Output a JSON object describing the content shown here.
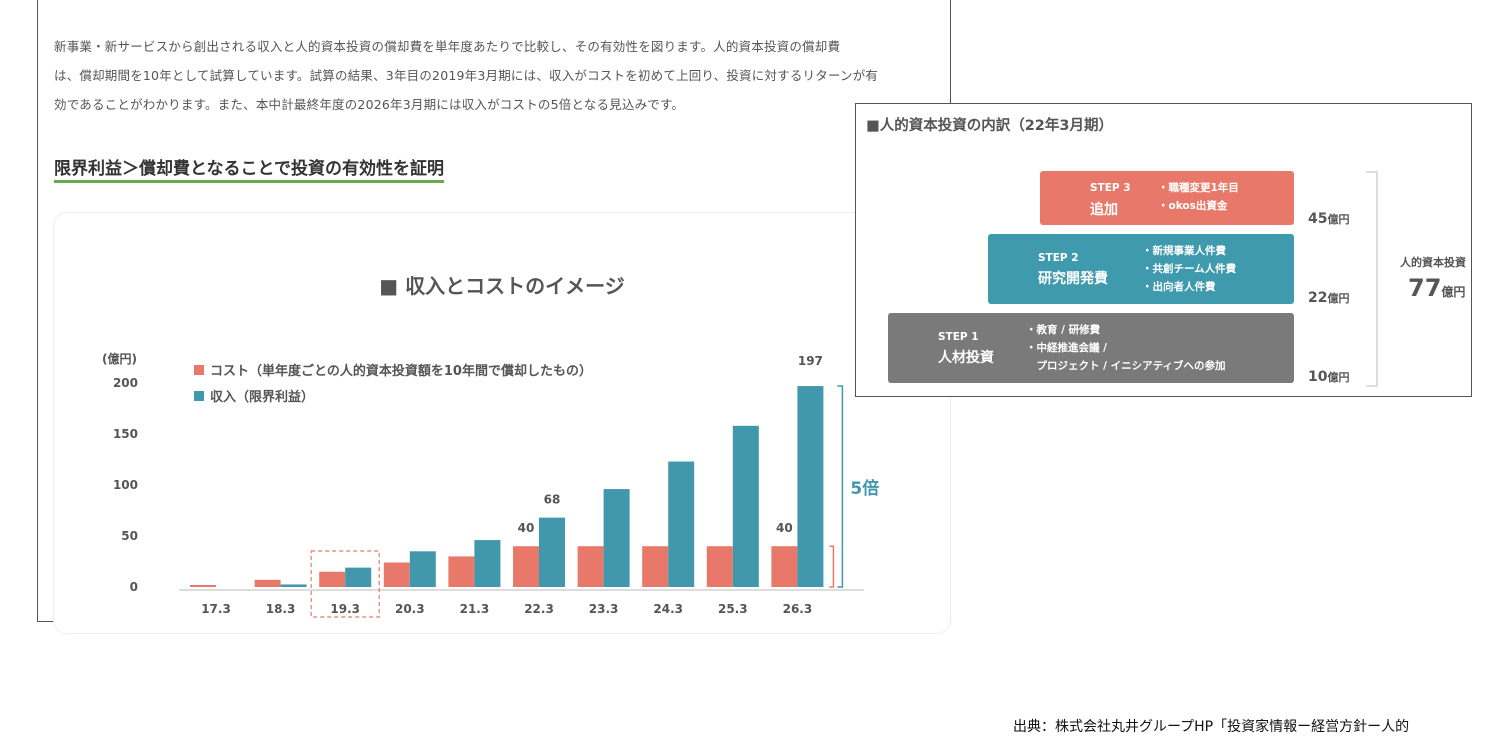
{
  "intro": {
    "line1": "新事業・新サービスから創出される収入と人的資本投資の償却費を単年度あたりで比較し、その有効性を図ります。人的資本投資の償却費",
    "line2": "は、償却期間を10年として試算しています。試算の結果、3年目の2019年3月期には、収入がコストを初めて上回り、投資に対するリターンが有",
    "line3": "効であることがわかります。また、本中計最終年度の2026年3月期には収入がコストの5倍となる見込みです。"
  },
  "subheading": "限界利益＞償却費となることで投資の有効性を証明",
  "chart_data": {
    "type": "bar",
    "title": "■ 収入とコストのイメージ",
    "ylabel": "(億円)",
    "ylim": [
      0,
      200
    ],
    "yticks": [
      0,
      50,
      100,
      150,
      200
    ],
    "categories": [
      "17.3",
      "18.3",
      "19.3",
      "20.3",
      "21.3",
      "22.3",
      "23.3",
      "24.3",
      "25.3",
      "26.3"
    ],
    "series": [
      {
        "name": "コスト（単年度ごとの人的資本投資額を10年間で償却したもの）",
        "color": "#e8796a",
        "values": [
          2,
          7,
          15,
          24,
          30,
          40,
          40,
          40,
          40,
          40
        ]
      },
      {
        "name": "収入（限界利益）",
        "color": "#4198ad",
        "values": [
          0,
          2.5,
          19,
          35,
          46,
          68,
          96,
          123,
          158,
          197
        ]
      }
    ],
    "data_labels": [
      {
        "category": "22.3",
        "series": 0,
        "text": "40"
      },
      {
        "category": "22.3",
        "series": 1,
        "text": "68"
      },
      {
        "category": "26.3",
        "series": 0,
        "text": "40"
      },
      {
        "category": "26.3",
        "series": 1,
        "text": "197"
      }
    ],
    "highlight_category": "19.3",
    "annotation": "5倍",
    "grid": false,
    "legend_position": "top-left"
  },
  "breakdown": {
    "title": "■人的資本投資の内訳（22年3月期）",
    "steps": [
      {
        "step": "STEP 3",
        "name": "追加",
        "items": [
          "・職種変更1年目",
          "・okos出資金"
        ],
        "amount": "45",
        "unit": "億円",
        "color": "#e8796a"
      },
      {
        "step": "STEP 2",
        "name": "研究開発費",
        "items": [
          "・新規事業人件費",
          "・共創チーム人件費",
          "・出向者人件費"
        ],
        "amount": "22",
        "unit": "億円",
        "color": "#3f9aad"
      },
      {
        "step": "STEP 1",
        "name": "人材投資",
        "items": [
          "・教育 / 研修費",
          "・中経推進会議 /",
          "　プロジェクト / イニシアティブへの参加"
        ],
        "amount": "10",
        "unit": "億円",
        "color": "#7a7a7a"
      }
    ],
    "total_label": "人的資本投資",
    "total_value": "77",
    "total_unit": "億円"
  },
  "source": "出典：株式会社丸井グループHP「投資家情報ー経営方針ー人的"
}
